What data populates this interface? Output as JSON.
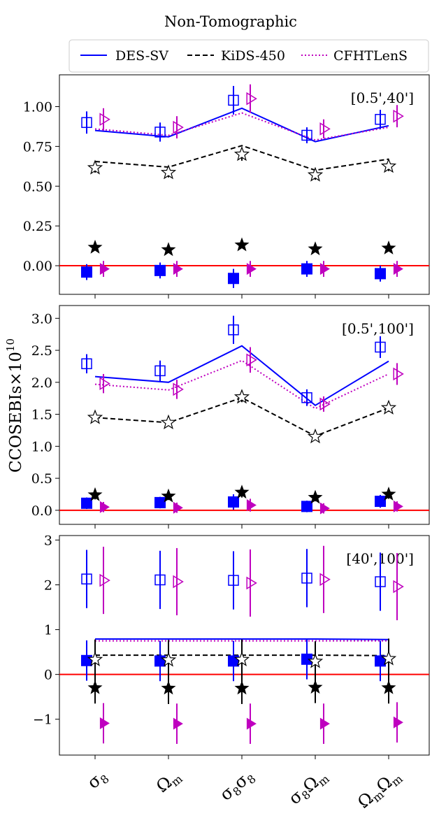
{
  "chart_data": {
    "type": "scatter",
    "title": "Non-Tomographic",
    "ylabel": "CCOSEBIs×10",
    "ylabel_exponent": "10",
    "categories": [
      {
        "base": "σ",
        "sub": "8",
        "base2": "",
        "sub2": ""
      },
      {
        "base": "Ω",
        "sub": "m",
        "base2": "",
        "sub2": ""
      },
      {
        "base": "σ",
        "sub": "8",
        "base2": "σ",
        "sub2": "8"
      },
      {
        "base": "σ",
        "sub": "8",
        "base2": "Ω",
        "sub2": "m"
      },
      {
        "base": "Ω",
        "sub": "m",
        "base2": "Ω",
        "sub2": "m"
      }
    ],
    "legend": [
      {
        "name": "DES-SV",
        "color": "#0000ff",
        "style": "solid"
      },
      {
        "name": "KiDS-450",
        "color": "#000000",
        "style": "dashed"
      },
      {
        "name": "CFHTLenS",
        "color": "#bf00bf",
        "style": "dotted"
      }
    ],
    "colors": {
      "des": "#0000ff",
      "kids": "#000000",
      "cfht": "#bf00bf",
      "zero": "#ff0000"
    },
    "panels": [
      {
        "range_label": "[0.5',40']",
        "ylim": [
          -0.18,
          1.2
        ],
        "yticks": [
          0.0,
          0.25,
          0.5,
          0.75,
          1.0
        ],
        "ytick_labels": [
          "0.00",
          "0.25",
          "0.50",
          "0.75",
          "1.00"
        ],
        "des_line": [
          0.85,
          0.81,
          0.99,
          0.78,
          0.88
        ],
        "kids_line": [
          0.655,
          0.62,
          0.755,
          0.6,
          0.67
        ],
        "cfht_line": [
          0.86,
          0.82,
          0.96,
          0.79,
          0.87
        ],
        "des_open": [
          [
            0.9,
            0.07
          ],
          [
            0.84,
            0.06
          ],
          [
            1.04,
            0.09
          ],
          [
            0.82,
            0.05
          ],
          [
            0.92,
            0.06
          ]
        ],
        "kids_open": [
          [
            0.615,
            0.03
          ],
          [
            0.585,
            0.03
          ],
          [
            0.7,
            0.04
          ],
          [
            0.57,
            0.03
          ],
          [
            0.625,
            0.03
          ]
        ],
        "cfht_open": [
          [
            0.92,
            0.07
          ],
          [
            0.87,
            0.07
          ],
          [
            1.05,
            0.09
          ],
          [
            0.86,
            0.06
          ],
          [
            0.94,
            0.07
          ]
        ],
        "des_filled": [
          [
            -0.04,
            0.05
          ],
          [
            -0.03,
            0.05
          ],
          [
            -0.08,
            0.06
          ],
          [
            -0.02,
            0.05
          ],
          [
            -0.05,
            0.05
          ]
        ],
        "kids_filled": [
          [
            0.115,
            0.02
          ],
          [
            0.1,
            0.02
          ],
          [
            0.13,
            0.02
          ],
          [
            0.105,
            0.02
          ],
          [
            0.11,
            0.02
          ]
        ],
        "cfht_filled": [
          [
            -0.02,
            0.05
          ],
          [
            -0.02,
            0.05
          ],
          [
            -0.02,
            0.05
          ],
          [
            -0.02,
            0.05
          ],
          [
            -0.02,
            0.05
          ]
        ]
      },
      {
        "range_label": "[0.5',100']",
        "ylim": [
          -0.22,
          3.2
        ],
        "yticks": [
          0.0,
          0.5,
          1.0,
          1.5,
          2.0,
          2.5,
          3.0
        ],
        "ytick_labels": [
          "0.0",
          "0.5",
          "1.0",
          "1.5",
          "2.0",
          "2.5",
          "3.0"
        ],
        "des_line": [
          2.09,
          2.0,
          2.57,
          1.64,
          2.33
        ],
        "kids_line": [
          1.45,
          1.37,
          1.76,
          1.16,
          1.6
        ],
        "cfht_line": [
          1.97,
          1.88,
          2.34,
          1.59,
          2.13
        ],
        "des_open": [
          [
            2.29,
            0.15
          ],
          [
            2.18,
            0.16
          ],
          [
            2.82,
            0.22
          ],
          [
            1.76,
            0.13
          ],
          [
            2.55,
            0.17
          ]
        ],
        "kids_open": [
          [
            1.45,
            0.05
          ],
          [
            1.37,
            0.05
          ],
          [
            1.77,
            0.08
          ],
          [
            1.15,
            0.05
          ],
          [
            1.6,
            0.06
          ]
        ],
        "cfht_open": [
          [
            1.98,
            0.15
          ],
          [
            1.89,
            0.15
          ],
          [
            2.35,
            0.2
          ],
          [
            1.66,
            0.12
          ],
          [
            2.13,
            0.17
          ]
        ],
        "des_filled": [
          [
            0.11,
            0.09
          ],
          [
            0.12,
            0.09
          ],
          [
            0.13,
            0.12
          ],
          [
            0.06,
            0.09
          ],
          [
            0.14,
            0.1
          ]
        ],
        "kids_filled": [
          [
            0.24,
            0.07
          ],
          [
            0.22,
            0.06
          ],
          [
            0.28,
            0.08
          ],
          [
            0.2,
            0.06
          ],
          [
            0.25,
            0.07
          ]
        ],
        "cfht_filled": [
          [
            0.05,
            0.08
          ],
          [
            0.04,
            0.08
          ],
          [
            0.08,
            0.1
          ],
          [
            0.03,
            0.08
          ],
          [
            0.06,
            0.08
          ]
        ]
      },
      {
        "range_label": "[40',100']",
        "ylim": [
          -1.8,
          3.1
        ],
        "yticks": [
          -1,
          0,
          1,
          2,
          3
        ],
        "ytick_labels": [
          "−1",
          "0",
          "1",
          "2",
          "3"
        ],
        "des_line": [
          0.79,
          0.79,
          0.79,
          0.79,
          0.78
        ],
        "kids_line": [
          0.43,
          0.43,
          0.43,
          0.43,
          0.42
        ],
        "cfht_line": [
          0.75,
          0.75,
          0.75,
          0.75,
          0.75
        ],
        "des_open": [
          [
            2.13,
            0.65
          ],
          [
            2.11,
            0.65
          ],
          [
            2.1,
            0.65
          ],
          [
            2.15,
            0.65
          ],
          [
            2.07,
            0.65
          ]
        ],
        "kids_open": [
          [
            0.33,
            0.45
          ],
          [
            0.32,
            0.45
          ],
          [
            0.33,
            0.45
          ],
          [
            0.29,
            0.45
          ],
          [
            0.35,
            0.45
          ]
        ],
        "cfht_open": [
          [
            2.1,
            0.75
          ],
          [
            2.07,
            0.75
          ],
          [
            2.04,
            0.75
          ],
          [
            2.12,
            0.75
          ],
          [
            1.96,
            0.75
          ]
        ],
        "des_filled": [
          [
            0.31,
            0.45
          ],
          [
            0.3,
            0.45
          ],
          [
            0.3,
            0.45
          ],
          [
            0.34,
            0.45
          ],
          [
            0.3,
            0.45
          ]
        ],
        "kids_filled": [
          [
            -0.3,
            0.35
          ],
          [
            -0.31,
            0.35
          ],
          [
            -0.31,
            0.35
          ],
          [
            -0.29,
            0.35
          ],
          [
            -0.3,
            0.35
          ]
        ],
        "cfht_filled": [
          [
            -1.09,
            0.45
          ],
          [
            -1.1,
            0.45
          ],
          [
            -1.1,
            0.45
          ],
          [
            -1.1,
            0.45
          ],
          [
            -1.07,
            0.45
          ]
        ]
      }
    ]
  }
}
